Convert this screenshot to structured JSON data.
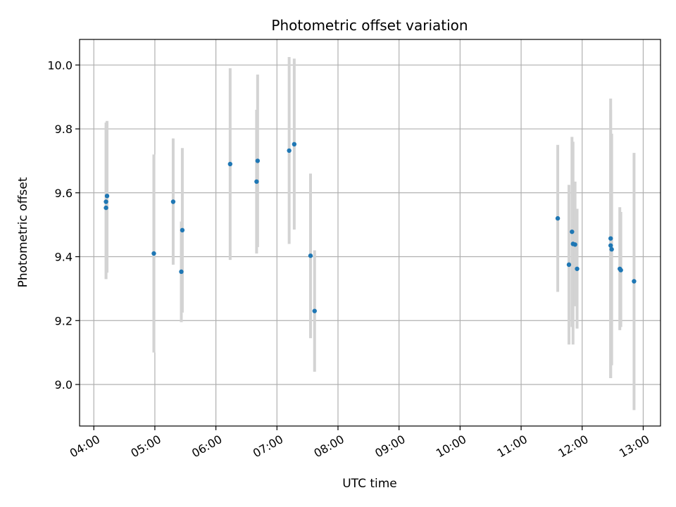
{
  "chart_data": {
    "type": "scatter",
    "title": "Photometric offset variation",
    "xlabel": "UTC time",
    "ylabel": "Photometric offset",
    "grid": true,
    "xlim": [
      "03:46",
      "13:17"
    ],
    "ylim": [
      8.87,
      10.08
    ],
    "x_ticks": [
      "04:00",
      "05:00",
      "06:00",
      "07:00",
      "08:00",
      "09:00",
      "10:00",
      "11:00",
      "12:00",
      "13:00"
    ],
    "y_ticks": [
      "9.0",
      "9.2",
      "9.4",
      "9.6",
      "9.8",
      "10.0"
    ],
    "errorbar_color": "#d3d3d3",
    "point_color": "#1f77b4",
    "points": [
      {
        "x": "04:12",
        "y": 9.572,
        "ylow": 9.33,
        "yhigh": 9.81
      },
      {
        "x": "04:12",
        "y": 9.553,
        "ylow": 9.33,
        "yhigh": 9.82
      },
      {
        "x": "04:13",
        "y": 9.59,
        "ylow": 9.35,
        "yhigh": 9.825
      },
      {
        "x": "04:59",
        "y": 9.41,
        "ylow": 9.1,
        "yhigh": 9.72
      },
      {
        "x": "05:18",
        "y": 9.572,
        "ylow": 9.375,
        "yhigh": 9.77
      },
      {
        "x": "05:26",
        "y": 9.353,
        "ylow": 9.195,
        "yhigh": 9.51
      },
      {
        "x": "05:27",
        "y": 9.483,
        "ylow": 9.225,
        "yhigh": 9.74
      },
      {
        "x": "06:14",
        "y": 9.69,
        "ylow": 9.39,
        "yhigh": 9.99
      },
      {
        "x": "06:40",
        "y": 9.635,
        "ylow": 9.41,
        "yhigh": 9.86
      },
      {
        "x": "06:41",
        "y": 9.7,
        "ylow": 9.43,
        "yhigh": 9.97
      },
      {
        "x": "07:12",
        "y": 9.732,
        "ylow": 9.44,
        "yhigh": 10.025
      },
      {
        "x": "07:17",
        "y": 9.752,
        "ylow": 9.485,
        "yhigh": 10.02
      },
      {
        "x": "07:33",
        "y": 9.403,
        "ylow": 9.145,
        "yhigh": 9.66
      },
      {
        "x": "07:37",
        "y": 9.23,
        "ylow": 9.04,
        "yhigh": 9.42
      },
      {
        "x": "11:36",
        "y": 9.52,
        "ylow": 9.29,
        "yhigh": 9.75
      },
      {
        "x": "11:47",
        "y": 9.375,
        "ylow": 9.125,
        "yhigh": 9.625
      },
      {
        "x": "11:50",
        "y": 9.478,
        "ylow": 9.18,
        "yhigh": 9.775
      },
      {
        "x": "11:51",
        "y": 9.44,
        "ylow": 9.125,
        "yhigh": 9.76
      },
      {
        "x": "11:53",
        "y": 9.438,
        "ylow": 9.245,
        "yhigh": 9.635
      },
      {
        "x": "11:55",
        "y": 9.362,
        "ylow": 9.175,
        "yhigh": 9.55
      },
      {
        "x": "12:28",
        "y": 9.457,
        "ylow": 9.02,
        "yhigh": 9.895
      },
      {
        "x": "12:28",
        "y": 9.435,
        "ylow": 9.02,
        "yhigh": 9.86
      },
      {
        "x": "12:29",
        "y": 9.423,
        "ylow": 9.06,
        "yhigh": 9.785
      },
      {
        "x": "12:37",
        "y": 9.362,
        "ylow": 9.17,
        "yhigh": 9.555
      },
      {
        "x": "12:38",
        "y": 9.358,
        "ylow": 9.18,
        "yhigh": 9.54
      },
      {
        "x": "12:51",
        "y": 9.323,
        "ylow": 8.92,
        "yhigh": 9.725
      }
    ]
  }
}
